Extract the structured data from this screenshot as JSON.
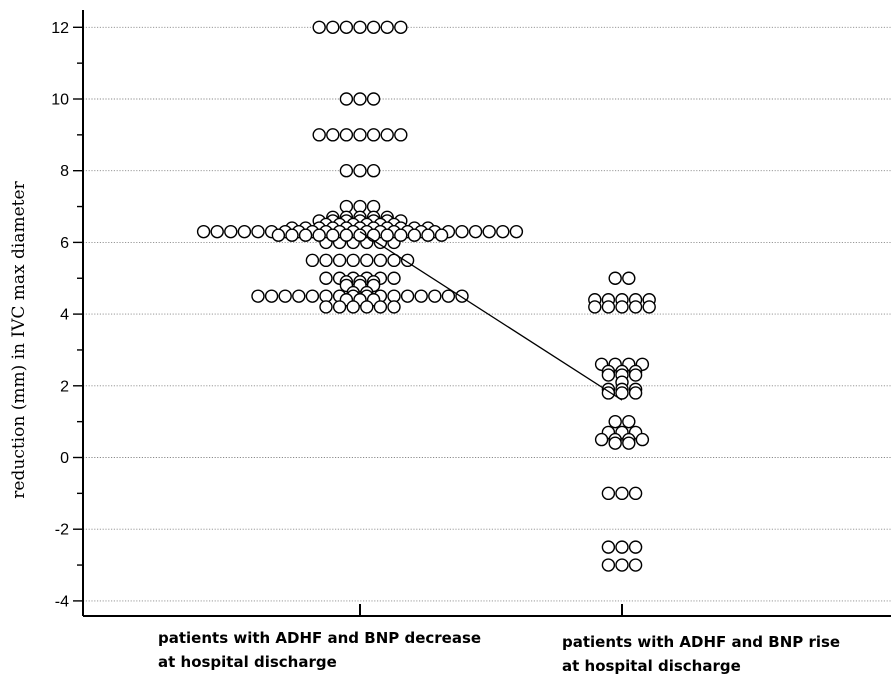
{
  "chart_data": {
    "type": "scatter",
    "subtype": "dot-plot",
    "title": "",
    "ylabel": "reduction (mm) in IVC max diameter",
    "xlabel": "",
    "ylim": [
      -4.2,
      12.5
    ],
    "yticks": [
      -4,
      -2,
      0,
      2,
      4,
      6,
      8,
      10,
      12
    ],
    "grid": "horizontal dotted",
    "marker": "open circle",
    "categories": [
      "patients with ADHF and BNP decrease at hospital discharge",
      "patients with ADHF and BNP rise at hospital discharge"
    ],
    "series": [
      {
        "category": "patients with ADHF and BNP decrease at hospital discharge",
        "mean": 6.3,
        "values": [
          12,
          12,
          12,
          12,
          12,
          12,
          12,
          10,
          10,
          10,
          9,
          9,
          9,
          9,
          9,
          9,
          9,
          8,
          8,
          8,
          7,
          7,
          7,
          6.7,
          6.7,
          6.7,
          6.7,
          6.7,
          6.6,
          6.6,
          6.6,
          6.6,
          6.6,
          6.6,
          6.6,
          6.5,
          6.5,
          6.5,
          6.5,
          6.5,
          6.5,
          6.4,
          6.4,
          6.4,
          6.4,
          6.4,
          6.4,
          6.4,
          6.4,
          6.4,
          6.4,
          6.4,
          6.3,
          6.3,
          6.3,
          6.3,
          6.3,
          6.3,
          6.3,
          6.3,
          6.3,
          6.3,
          6.3,
          6.3,
          6.3,
          6.3,
          6.3,
          6.3,
          6.3,
          6.3,
          6.3,
          6.3,
          6.3,
          6.3,
          6.3,
          6.3,
          6.2,
          6.2,
          6.2,
          6.2,
          6.2,
          6.2,
          6.2,
          6.2,
          6.2,
          6.2,
          6.2,
          6.2,
          6.2,
          6,
          6,
          6,
          6,
          6,
          6,
          5.5,
          5.5,
          5.5,
          5.5,
          5.5,
          5.5,
          5.5,
          5.5,
          5,
          5,
          5,
          5,
          5,
          5,
          4.9,
          4.9,
          4.9,
          4.8,
          4.8,
          4.8,
          4.6,
          4.6,
          4.5,
          4.5,
          4.5,
          4.5,
          4.5,
          4.5,
          4.5,
          4.5,
          4.5,
          4.5,
          4.5,
          4.5,
          4.5,
          4.5,
          4.5,
          4.5,
          4.4,
          4.4,
          4.4,
          4.2,
          4.2,
          4.2,
          4.2,
          4.2,
          4.2
        ]
      },
      {
        "category": "patients with ADHF and BNP rise at hospital discharge",
        "mean": 1.6,
        "values": [
          5,
          5,
          4.4,
          4.4,
          4.4,
          4.4,
          4.4,
          4.2,
          4.2,
          4.2,
          4.2,
          4.2,
          2.6,
          2.6,
          2.6,
          2.6,
          2.4,
          2.4,
          2.4,
          2.3,
          2.3,
          2.3,
          2.1,
          1.9,
          1.9,
          1.9,
          1.8,
          1.8,
          1.8,
          1,
          1,
          0.7,
          0.7,
          0.7,
          0.5,
          0.5,
          0.5,
          0.5,
          0.4,
          0.4,
          -1,
          -1,
          -1,
          -2.5,
          -2.5,
          -2.5,
          -3,
          -3,
          -3
        ]
      }
    ]
  }
}
